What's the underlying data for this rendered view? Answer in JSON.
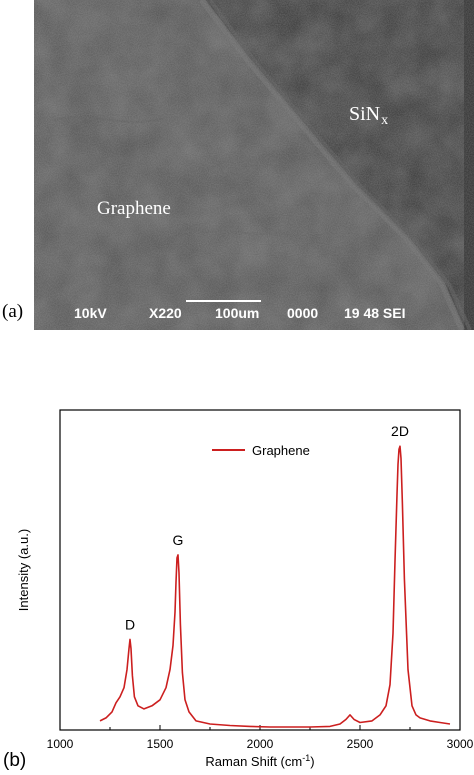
{
  "panel_a": {
    "label": "(a)",
    "region_graphene": "Graphene",
    "region_sinx_base": "SiN",
    "region_sinx_sub": "x",
    "info": {
      "voltage": "10kV",
      "magnification": "X220",
      "scale": "100um",
      "number": "0000",
      "code": "19 48 SEI"
    }
  },
  "panel_b": {
    "label": "(b)"
  },
  "chart_data": {
    "type": "line",
    "title": "",
    "xlabel": "Raman Shift (cm",
    "xlabel_sup": "-1",
    "xlabel_end": ")",
    "ylabel": "Intensity (a.u.)",
    "xlim": [
      1000,
      3000
    ],
    "ylim": [
      0,
      1.06
    ],
    "xticks": [
      1000,
      1500,
      2000,
      2500,
      3000
    ],
    "xtick_labels": [
      "1000",
      "1500",
      "2000",
      "2500",
      "3000"
    ],
    "legend_position": "top-center",
    "grid": false,
    "series": [
      {
        "name": "Graphene",
        "color": "#cc1f1f",
        "x": [
          1200,
          1230,
          1260,
          1280,
          1300,
          1320,
          1335,
          1345,
          1350,
          1355,
          1362,
          1372,
          1390,
          1420,
          1460,
          1500,
          1530,
          1550,
          1565,
          1575,
          1580,
          1585,
          1590,
          1595,
          1602,
          1612,
          1625,
          1645,
          1680,
          1750,
          1850,
          1950,
          2050,
          2150,
          2250,
          2350,
          2400,
          2430,
          2450,
          2470,
          2500,
          2560,
          2600,
          2630,
          2650,
          2665,
          2675,
          2685,
          2690,
          2695,
          2700,
          2705,
          2712,
          2722,
          2740,
          2760,
          2780,
          2800,
          2850,
          2900,
          2950
        ],
        "values": [
          0.03,
          0.04,
          0.06,
          0.09,
          0.11,
          0.14,
          0.2,
          0.27,
          0.3,
          0.27,
          0.18,
          0.11,
          0.08,
          0.07,
          0.08,
          0.1,
          0.14,
          0.2,
          0.28,
          0.39,
          0.49,
          0.57,
          0.58,
          0.52,
          0.35,
          0.19,
          0.1,
          0.06,
          0.03,
          0.02,
          0.015,
          0.012,
          0.01,
          0.01,
          0.01,
          0.012,
          0.02,
          0.035,
          0.05,
          0.035,
          0.025,
          0.03,
          0.05,
          0.08,
          0.15,
          0.32,
          0.56,
          0.78,
          0.88,
          0.93,
          0.94,
          0.9,
          0.75,
          0.5,
          0.2,
          0.08,
          0.05,
          0.04,
          0.03,
          0.025,
          0.02
        ]
      }
    ],
    "annotations": [
      {
        "text": "D",
        "x": 1350,
        "y": 0.3
      },
      {
        "text": "G",
        "x": 1590,
        "y": 0.58
      },
      {
        "text": "2D",
        "x": 2700,
        "y": 0.94
      }
    ]
  }
}
